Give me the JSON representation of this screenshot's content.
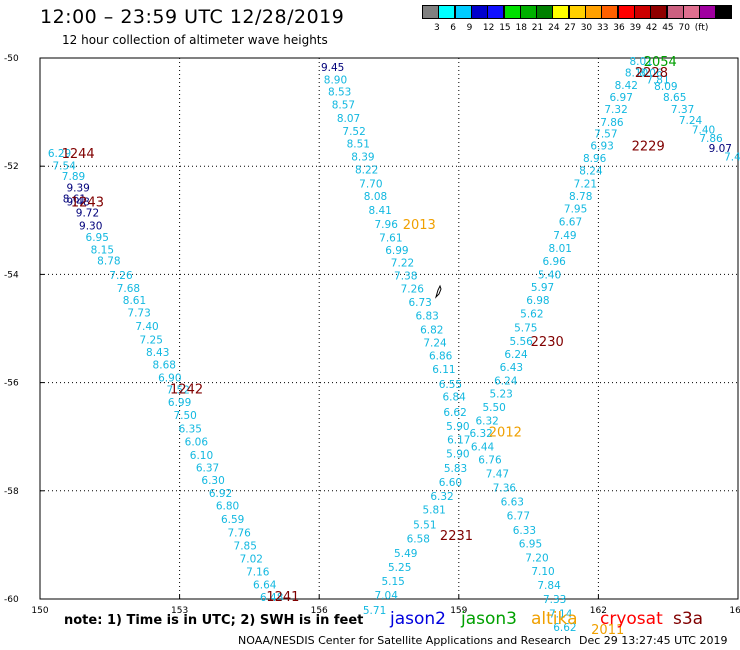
{
  "title": "12:00 – 23:59 UTC 12/28/2019",
  "subtitle": "12 hour collection of altimeter wave heights",
  "legend": {
    "colors": [
      "#808080",
      "#00ffff",
      "#00ccff",
      "#0000cc",
      "#1010ff",
      "#00e000",
      "#00b000",
      "#008000",
      "#ffff00",
      "#ffd000",
      "#ffa000",
      "#ff6000",
      "#ff0000",
      "#cc0000",
      "#900000",
      "#cc6080",
      "#e07090",
      "#a000a0",
      "#000000"
    ],
    "labels": [
      "3",
      "6",
      "9",
      "12",
      "15",
      "18",
      "21",
      "24",
      "27",
      "30",
      "33",
      "36",
      "39",
      "42",
      "45",
      "70",
      "(ft)"
    ]
  },
  "axes": {
    "x_ticks": [
      "150",
      "153",
      "156",
      "159",
      "162",
      "165"
    ],
    "y_ticks": [
      "-50",
      "-52",
      "-54",
      "-56",
      "-58",
      "-60"
    ]
  },
  "track_colors": {
    "light": "#12b8e0",
    "dark": "#00007a",
    "jason3": "#00a000",
    "altika": "#f0a000",
    "cryosat": "#800000"
  },
  "footer": {
    "note": "note: 1) Time is in UTC; 2) SWH is in feet",
    "sats": [
      {
        "name": "jason2",
        "color": "#0000dd"
      },
      {
        "name": "jason3",
        "color": "#00a000"
      },
      {
        "name": "altika",
        "color": "#f0a000"
      },
      {
        "name": "cryosat",
        "color": "#ff0000"
      },
      {
        "name": "s3a",
        "color": "#800000"
      }
    ],
    "credit": "NOAA/NESDIS Center for Satellite Applications and Research",
    "timestamp": "Dec 29 13:27:45 UTC 2019"
  },
  "swh_values": [
    {
      "lon": 150.42,
      "lat": -51.76,
      "v": "6.29",
      "c": "light"
    },
    {
      "lon": 150.52,
      "lat": -51.99,
      "v": "7.54",
      "c": "light"
    },
    {
      "lon": 150.72,
      "lat": -52.18,
      "v": "7.89",
      "c": "light"
    },
    {
      "lon": 150.82,
      "lat": -52.39,
      "v": "9.39",
      "c": "dark"
    },
    {
      "lon": 150.74,
      "lat": -52.6,
      "v": "8.61",
      "c": "dark"
    },
    {
      "lon": 150.82,
      "lat": -52.65,
      "v": "9.48",
      "c": "dark"
    },
    {
      "lon": 151.02,
      "lat": -52.86,
      "v": "9.72",
      "c": "dark"
    },
    {
      "lon": 151.09,
      "lat": -53.1,
      "v": "9.30",
      "c": "dark"
    },
    {
      "lon": 151.23,
      "lat": -53.31,
      "v": "6.95",
      "c": "light"
    },
    {
      "lon": 151.34,
      "lat": -53.54,
      "v": "8.15",
      "c": "light"
    },
    {
      "lon": 151.48,
      "lat": -53.74,
      "v": "8.78",
      "c": "light"
    },
    {
      "lon": 151.74,
      "lat": -54.01,
      "v": "7.26",
      "c": "light"
    },
    {
      "lon": 151.9,
      "lat": -54.25,
      "v": "7.68",
      "c": "light"
    },
    {
      "lon": 152.03,
      "lat": -54.47,
      "v": "8.61",
      "c": "light"
    },
    {
      "lon": 152.13,
      "lat": -54.7,
      "v": "7.73",
      "c": "light"
    },
    {
      "lon": 152.3,
      "lat": -54.95,
      "v": "7.40",
      "c": "light"
    },
    {
      "lon": 152.39,
      "lat": -55.2,
      "v": "7.25",
      "c": "light"
    },
    {
      "lon": 152.53,
      "lat": -55.43,
      "v": "8.43",
      "c": "light"
    },
    {
      "lon": 152.67,
      "lat": -55.67,
      "v": "8.68",
      "c": "light"
    },
    {
      "lon": 152.79,
      "lat": -55.91,
      "v": "6.90",
      "c": "light"
    },
    {
      "lon": 152.97,
      "lat": -56.13,
      "v": "7.52",
      "c": "light"
    },
    {
      "lon": 153.0,
      "lat": -56.36,
      "v": "6.99",
      "c": "light"
    },
    {
      "lon": 153.12,
      "lat": -56.6,
      "v": "7.50",
      "c": "light"
    },
    {
      "lon": 153.23,
      "lat": -56.85,
      "v": "6.35",
      "c": "light"
    },
    {
      "lon": 153.36,
      "lat": -57.09,
      "v": "6.06",
      "c": "light"
    },
    {
      "lon": 153.47,
      "lat": -57.34,
      "v": "6.10",
      "c": "light"
    },
    {
      "lon": 153.6,
      "lat": -57.57,
      "v": "6.37",
      "c": "light"
    },
    {
      "lon": 153.72,
      "lat": -57.8,
      "v": "6.30",
      "c": "light"
    },
    {
      "lon": 153.88,
      "lat": -58.04,
      "v": "6.92",
      "c": "light"
    },
    {
      "lon": 154.03,
      "lat": -58.27,
      "v": "6.80",
      "c": "light"
    },
    {
      "lon": 154.14,
      "lat": -58.52,
      "v": "6.59",
      "c": "light"
    },
    {
      "lon": 154.28,
      "lat": -58.77,
      "v": "7.76",
      "c": "light"
    },
    {
      "lon": 154.41,
      "lat": -59.01,
      "v": "7.85",
      "c": "light"
    },
    {
      "lon": 154.54,
      "lat": -59.25,
      "v": "7.02",
      "c": "light"
    },
    {
      "lon": 154.68,
      "lat": -59.49,
      "v": "7.16",
      "c": "light"
    },
    {
      "lon": 154.83,
      "lat": -59.73,
      "v": "6.64",
      "c": "light"
    },
    {
      "lon": 154.98,
      "lat": -59.96,
      "v": "6.48",
      "c": "light"
    },
    {
      "lon": 156.29,
      "lat": -50.17,
      "v": "9.45",
      "c": "dark"
    },
    {
      "lon": 156.35,
      "lat": -50.4,
      "v": "8.90",
      "c": "light"
    },
    {
      "lon": 156.44,
      "lat": -50.62,
      "v": "8.53",
      "c": "light"
    },
    {
      "lon": 156.52,
      "lat": -50.86,
      "v": "8.57",
      "c": "light"
    },
    {
      "lon": 156.63,
      "lat": -51.11,
      "v": "8.07",
      "c": "light"
    },
    {
      "lon": 156.75,
      "lat": -51.35,
      "v": "7.52",
      "c": "light"
    },
    {
      "lon": 156.84,
      "lat": -51.58,
      "v": "8.51",
      "c": "light"
    },
    {
      "lon": 156.94,
      "lat": -51.82,
      "v": "8.39",
      "c": "light"
    },
    {
      "lon": 157.02,
      "lat": -52.06,
      "v": "8.22",
      "c": "light"
    },
    {
      "lon": 157.11,
      "lat": -52.32,
      "v": "7.70",
      "c": "light"
    },
    {
      "lon": 157.21,
      "lat": -52.55,
      "v": "8.08",
      "c": "light"
    },
    {
      "lon": 157.31,
      "lat": -52.81,
      "v": "8.41",
      "c": "light"
    },
    {
      "lon": 157.44,
      "lat": -53.07,
      "v": "7.96",
      "c": "light"
    },
    {
      "lon": 157.54,
      "lat": -53.32,
      "v": "7.61",
      "c": "light"
    },
    {
      "lon": 157.67,
      "lat": -53.55,
      "v": "6.99",
      "c": "light"
    },
    {
      "lon": 157.79,
      "lat": -53.78,
      "v": "7.22",
      "c": "light"
    },
    {
      "lon": 157.86,
      "lat": -54.02,
      "v": "7.38",
      "c": "light"
    },
    {
      "lon": 158.0,
      "lat": -54.26,
      "v": "7.26",
      "c": "light"
    },
    {
      "lon": 158.17,
      "lat": -54.51,
      "v": "6.73",
      "c": "light"
    },
    {
      "lon": 158.32,
      "lat": -54.76,
      "v": "6.83",
      "c": "light"
    },
    {
      "lon": 158.42,
      "lat": -55.02,
      "v": "6.82",
      "c": "light"
    },
    {
      "lon": 158.49,
      "lat": -55.26,
      "v": "7.24",
      "c": "light"
    },
    {
      "lon": 158.61,
      "lat": -55.5,
      "v": "6.86",
      "c": "light"
    },
    {
      "lon": 158.68,
      "lat": -55.75,
      "v": "6.11",
      "c": "light"
    },
    {
      "lon": 158.82,
      "lat": -56.03,
      "v": "6.55",
      "c": "light"
    },
    {
      "lon": 158.9,
      "lat": -56.26,
      "v": "6.84",
      "c": "light"
    },
    {
      "lon": 158.92,
      "lat": -56.54,
      "v": "6.62",
      "c": "light"
    },
    {
      "lon": 158.98,
      "lat": -56.8,
      "v": "5.90",
      "c": "light"
    },
    {
      "lon": 159.0,
      "lat": -57.05,
      "v": "6.17",
      "c": "light"
    },
    {
      "lon": 158.98,
      "lat": -57.31,
      "v": "5.90",
      "c": "light"
    },
    {
      "lon": 158.93,
      "lat": -57.58,
      "v": "5.83",
      "c": "light"
    },
    {
      "lon": 158.82,
      "lat": -57.84,
      "v": "6.60",
      "c": "light"
    },
    {
      "lon": 158.64,
      "lat": -58.1,
      "v": "6.32",
      "c": "light"
    },
    {
      "lon": 158.47,
      "lat": -58.35,
      "v": "5.81",
      "c": "light"
    },
    {
      "lon": 158.27,
      "lat": -58.62,
      "v": "5.51",
      "c": "light"
    },
    {
      "lon": 158.13,
      "lat": -58.88,
      "v": "6.58",
      "c": "light"
    },
    {
      "lon": 157.86,
      "lat": -59.15,
      "v": "5.49",
      "c": "light"
    },
    {
      "lon": 157.73,
      "lat": -59.41,
      "v": "5.25",
      "c": "light"
    },
    {
      "lon": 157.59,
      "lat": -59.67,
      "v": "5.15",
      "c": "light"
    },
    {
      "lon": 157.44,
      "lat": -59.93,
      "v": "7.04",
      "c": "light"
    },
    {
      "lon": 157.19,
      "lat": -60.2,
      "v": "5.71",
      "c": "light"
    },
    {
      "lon": 162.92,
      "lat": -50.06,
      "v": "8.01",
      "c": "light"
    },
    {
      "lon": 162.82,
      "lat": -50.27,
      "v": "8.10",
      "c": "light"
    },
    {
      "lon": 163.13,
      "lat": -50.27,
      "v": "8.06",
      "c": "light"
    },
    {
      "lon": 163.28,
      "lat": -50.4,
      "v": "7.81",
      "c": "light"
    },
    {
      "lon": 162.6,
      "lat": -50.5,
      "v": "8.42",
      "c": "light"
    },
    {
      "lon": 163.45,
      "lat": -50.52,
      "v": "8.09",
      "c": "light"
    },
    {
      "lon": 162.49,
      "lat": -50.72,
      "v": "6.97",
      "c": "light"
    },
    {
      "lon": 163.64,
      "lat": -50.72,
      "v": "8.65",
      "c": "light"
    },
    {
      "lon": 162.38,
      "lat": -50.94,
      "v": "7.32",
      "c": "light"
    },
    {
      "lon": 163.81,
      "lat": -50.94,
      "v": "7.37",
      "c": "light"
    },
    {
      "lon": 162.29,
      "lat": -51.18,
      "v": "7.86",
      "c": "light"
    },
    {
      "lon": 163.98,
      "lat": -51.15,
      "v": "7.24",
      "c": "light"
    },
    {
      "lon": 162.16,
      "lat": -51.4,
      "v": "7.57",
      "c": "light"
    },
    {
      "lon": 164.26,
      "lat": -51.32,
      "v": "7.40",
      "c": "light"
    },
    {
      "lon": 162.08,
      "lat": -51.62,
      "v": "6.93",
      "c": "light"
    },
    {
      "lon": 164.42,
      "lat": -51.48,
      "v": "7.86",
      "c": "light"
    },
    {
      "lon": 164.62,
      "lat": -51.66,
      "v": "9.07",
      "c": "dark"
    },
    {
      "lon": 164.88,
      "lat": -51.82,
      "v": "7.4",
      "c": "light"
    },
    {
      "lon": 161.92,
      "lat": -51.85,
      "v": "8.96",
      "c": "light"
    },
    {
      "lon": 161.84,
      "lat": -52.08,
      "v": "8.24",
      "c": "light"
    },
    {
      "lon": 161.72,
      "lat": -52.32,
      "v": "7.21",
      "c": "light"
    },
    {
      "lon": 161.62,
      "lat": -52.55,
      "v": "8.78",
      "c": "light"
    },
    {
      "lon": 161.51,
      "lat": -52.78,
      "v": "7.95",
      "c": "light"
    },
    {
      "lon": 161.4,
      "lat": -53.02,
      "v": "6.67",
      "c": "light"
    },
    {
      "lon": 161.28,
      "lat": -53.27,
      "v": "7.49",
      "c": "light"
    },
    {
      "lon": 161.18,
      "lat": -53.51,
      "v": "8.01",
      "c": "light"
    },
    {
      "lon": 161.05,
      "lat": -53.75,
      "v": "6.96",
      "c": "light"
    },
    {
      "lon": 160.95,
      "lat": -54.0,
      "v": "5.40",
      "c": "light"
    },
    {
      "lon": 160.8,
      "lat": -54.23,
      "v": "5.97",
      "c": "light"
    },
    {
      "lon": 160.7,
      "lat": -54.47,
      "v": "6.98",
      "c": "light"
    },
    {
      "lon": 160.57,
      "lat": -54.72,
      "v": "5.62",
      "c": "light"
    },
    {
      "lon": 160.44,
      "lat": -54.98,
      "v": "5.75",
      "c": "light"
    },
    {
      "lon": 160.34,
      "lat": -55.23,
      "v": "5.56",
      "c": "light"
    },
    {
      "lon": 160.23,
      "lat": -55.47,
      "v": "6.24",
      "c": "light"
    },
    {
      "lon": 160.13,
      "lat": -55.71,
      "v": "6.43",
      "c": "light"
    },
    {
      "lon": 160.01,
      "lat": -55.96,
      "v": "6.24",
      "c": "light"
    },
    {
      "lon": 159.91,
      "lat": -56.2,
      "v": "5.23",
      "c": "light"
    },
    {
      "lon": 159.76,
      "lat": -56.45,
      "v": "5.50",
      "c": "light"
    },
    {
      "lon": 159.61,
      "lat": -56.7,
      "v": "6.32",
      "c": "light"
    },
    {
      "lon": 159.48,
      "lat": -56.93,
      "v": "6.32",
      "c": "light"
    },
    {
      "lon": 159.51,
      "lat": -57.18,
      "v": "6.44",
      "c": "light"
    },
    {
      "lon": 159.67,
      "lat": -57.42,
      "v": "6.76",
      "c": "light"
    },
    {
      "lon": 159.83,
      "lat": -57.68,
      "v": "7.47",
      "c": "light"
    },
    {
      "lon": 159.98,
      "lat": -57.94,
      "v": "7.36",
      "c": "light"
    },
    {
      "lon": 160.15,
      "lat": -58.2,
      "v": "6.63",
      "c": "light"
    },
    {
      "lon": 160.28,
      "lat": -58.46,
      "v": "6.77",
      "c": "light"
    },
    {
      "lon": 160.41,
      "lat": -58.72,
      "v": "6.33",
      "c": "light"
    },
    {
      "lon": 160.54,
      "lat": -58.97,
      "v": "6.95",
      "c": "light"
    },
    {
      "lon": 160.68,
      "lat": -59.23,
      "v": "7.20",
      "c": "light"
    },
    {
      "lon": 160.81,
      "lat": -59.48,
      "v": "7.10",
      "c": "light"
    },
    {
      "lon": 160.94,
      "lat": -59.74,
      "v": "7.84",
      "c": "light"
    },
    {
      "lon": 161.06,
      "lat": -60.0,
      "v": "7.33",
      "c": "light"
    },
    {
      "lon": 161.19,
      "lat": -60.27,
      "v": "7.14",
      "c": "light"
    },
    {
      "lon": 161.28,
      "lat": -60.52,
      "v": "6.62",
      "c": "light"
    }
  ],
  "time_labels": [
    {
      "lon": 150.82,
      "lat": -51.76,
      "v": "1244",
      "c": "cryosat"
    },
    {
      "lon": 151.02,
      "lat": -52.65,
      "v": "1243",
      "c": "cryosat"
    },
    {
      "lon": 153.15,
      "lat": -56.11,
      "v": "1242",
      "c": "cryosat"
    },
    {
      "lon": 155.22,
      "lat": -59.94,
      "v": "1241",
      "c": "cryosat"
    },
    {
      "lon": 158.15,
      "lat": -53.07,
      "v": "2013",
      "c": "altika"
    },
    {
      "lon": 160.0,
      "lat": -56.9,
      "v": "2012",
      "c": "altika"
    },
    {
      "lon": 162.2,
      "lat": -60.55,
      "v": "2011",
      "c": "altika"
    },
    {
      "lon": 160.9,
      "lat": -55.23,
      "v": "2230",
      "c": "cryosat"
    },
    {
      "lon": 158.95,
      "lat": -58.82,
      "v": "2231",
      "c": "cryosat"
    },
    {
      "lon": 163.07,
      "lat": -51.62,
      "v": "2229",
      "c": "cryosat"
    },
    {
      "lon": 163.14,
      "lat": -50.26,
      "v": "2228",
      "c": "cryosat"
    },
    {
      "lon": 163.33,
      "lat": -50.06,
      "v": "2054",
      "c": "jason3"
    }
  ]
}
